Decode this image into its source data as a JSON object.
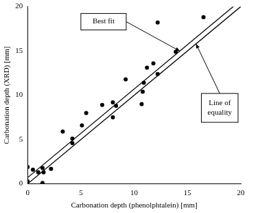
{
  "chart_data": {
    "type": "scatter",
    "x_label": "Carbonation depth (phenolphtalein) [mm]",
    "y_label": "Carbonation depth (XRD) [mm]",
    "xlim": [
      0,
      20
    ],
    "xticks": [
      0,
      5,
      10,
      15,
      20
    ],
    "ylim": [
      0,
      20
    ],
    "yticks": [
      0,
      5,
      10,
      15,
      20
    ],
    "grid": false,
    "series": [
      {
        "color": "#000000",
        "marker": "circle",
        "x": [
          0,
          0,
          0.5,
          1,
          1.4,
          1.5,
          1.4,
          2.2,
          3.3,
          4.2,
          4.2,
          5.1,
          5.5,
          7,
          8,
          8,
          8.3,
          9.2,
          10.7,
          10.8,
          10.9,
          11.2,
          11.8,
          12.2,
          12.2,
          13.9,
          16.5
        ],
        "values": [
          1.9,
          0.3,
          1.6,
          1.3,
          1.8,
          1.3,
          0.1,
          1.7,
          5.9,
          5.1,
          4.6,
          6.6,
          8,
          8.9,
          7.5,
          9.2,
          8.8,
          11.8,
          9,
          10.4,
          11.4,
          13.1,
          13.6,
          12.4,
          18.2,
          14.9,
          18.8
        ]
      },
      {
        "name": "Best fit",
        "color": "#000000",
        "marker": "none",
        "line_style": "solid",
        "x": [
          0,
          19.3
        ],
        "values": [
          0.7,
          20
        ]
      },
      {
        "name": "Line of equality",
        "color": "#000000",
        "marker": "none",
        "line_style": "solid",
        "x": [
          0,
          20
        ],
        "values": [
          0,
          20
        ]
      }
    ]
  }
}
